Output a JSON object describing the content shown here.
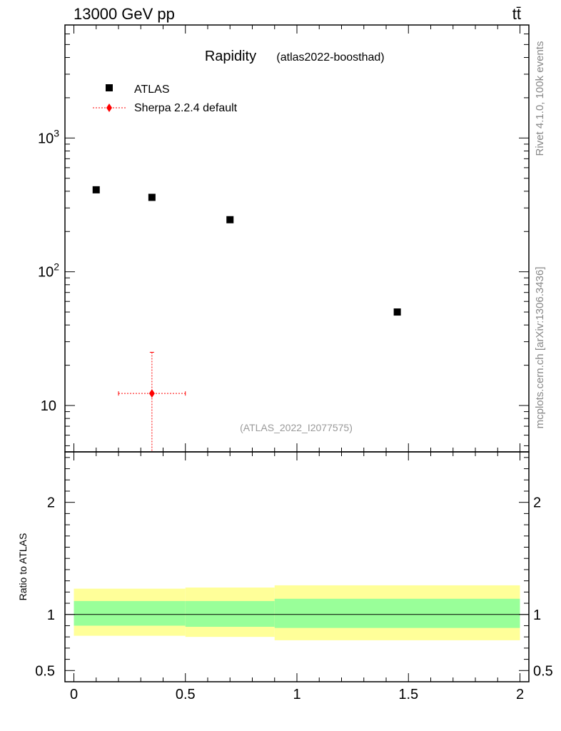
{
  "header": {
    "energy_label": "13000 GeV pp",
    "process_label": "tt̄"
  },
  "side": {
    "rivet_label": "Rivet 4.1.0,  100k events",
    "site_label": "mcplots.cern.ch [arXiv:1306.3436]"
  },
  "chart_data": [
    {
      "type": "scatter",
      "title": "Rapidity",
      "subtitle": "(atlas2022-boosthad)",
      "watermark": "(ATLAS_2022_I2077575)",
      "yscale": "log",
      "xlim": [
        -0.04,
        2.04
      ],
      "ylim": [
        4.5,
        7000
      ],
      "ytick_labels": [
        "10",
        "10^2",
        "10^3"
      ],
      "legend": {
        "position": "top-left",
        "entries": [
          {
            "label": "ATLAS",
            "marker": "square",
            "color": "#000000"
          },
          {
            "label": "Sherpa 2.2.4 default",
            "marker": "diamond",
            "color": "#ff0000",
            "line": "dotted"
          }
        ]
      },
      "series": [
        {
          "name": "ATLAS",
          "color": "#000000",
          "points": [
            {
              "x": 0.1,
              "y": 410
            },
            {
              "x": 0.35,
              "y": 360
            },
            {
              "x": 0.7,
              "y": 245
            },
            {
              "x": 1.45,
              "y": 50
            }
          ]
        },
        {
          "name": "Sherpa 2.2.4 default",
          "color": "#ff0000",
          "points": [
            {
              "x": 0.35,
              "xlow": 0.2,
              "xhigh": 0.5,
              "y": 12.3,
              "ylow": 4.5,
              "yhigh": 25
            }
          ]
        }
      ]
    },
    {
      "type": "area",
      "ylabel": "Ratio to ATLAS",
      "xlim": [
        -0.04,
        2.04
      ],
      "ylim": [
        0.4,
        2.45
      ],
      "x_ticks": [
        0,
        0.5,
        1,
        1.5,
        2
      ],
      "x_tick_labels": [
        "0",
        "0.5",
        "1",
        "1.5",
        "2"
      ],
      "y_ticks": [
        0.5,
        1,
        2
      ],
      "y_tick_labels": [
        "0.5",
        "1",
        "2"
      ],
      "reference_line": 1.0,
      "bands": [
        {
          "xlow": 0.0,
          "xhigh": 0.5,
          "inner": [
            0.9,
            1.12
          ],
          "outer": [
            0.81,
            1.23
          ]
        },
        {
          "xlow": 0.5,
          "xhigh": 0.9,
          "inner": [
            0.89,
            1.12
          ],
          "outer": [
            0.8,
            1.24
          ]
        },
        {
          "xlow": 0.9,
          "xhigh": 2.0,
          "inner": [
            0.88,
            1.14
          ],
          "outer": [
            0.77,
            1.26
          ]
        }
      ],
      "colors": {
        "inner_band": "#99ff99",
        "outer_band": "#ffff99"
      }
    }
  ]
}
